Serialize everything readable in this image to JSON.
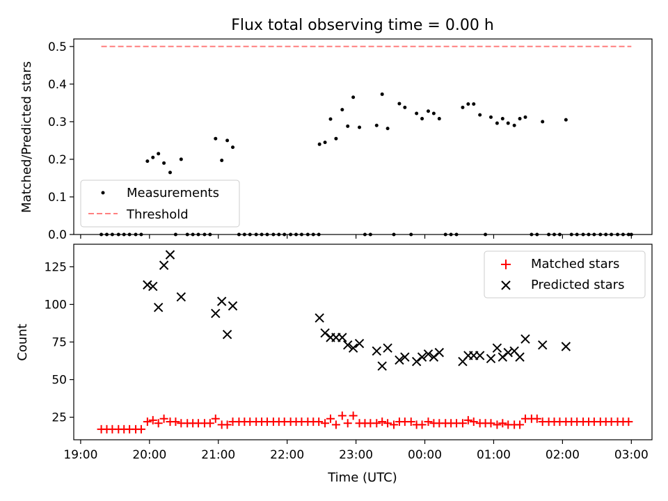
{
  "figure": {
    "title": "Flux total observing time = 0.00 h",
    "xlabel": "Time (UTC)"
  },
  "chart_data": [
    {
      "type": "scatter",
      "title": "Flux total observing time = 0.00 h",
      "ylabel": "Matched/Predicted stars",
      "xlabel": "",
      "x_unit": "hours since 19:00 UTC",
      "xlim": [
        -0.1,
        8.3
      ],
      "ylim": [
        0,
        0.52
      ],
      "yticks": [
        0.0,
        0.1,
        0.2,
        0.3,
        0.4,
        0.5
      ],
      "ytick_labels": [
        "0.0",
        "0.1",
        "0.2",
        "0.3",
        "0.4",
        "0.5"
      ],
      "xticks": [
        0,
        1,
        2,
        3,
        4,
        5,
        6,
        7,
        8
      ],
      "legend_position": "lower-left",
      "series": [
        {
          "name": "Measurements",
          "color": "#000000",
          "marker": "dot",
          "points": [
            [
              0.3,
              0
            ],
            [
              0.38,
              0
            ],
            [
              0.46,
              0
            ],
            [
              0.55,
              0
            ],
            [
              0.63,
              0
            ],
            [
              0.71,
              0
            ],
            [
              0.8,
              0
            ],
            [
              0.88,
              0
            ],
            [
              0.97,
              0.195
            ],
            [
              1.05,
              0.205
            ],
            [
              1.13,
              0.215
            ],
            [
              1.21,
              0.19
            ],
            [
              1.3,
              0.165
            ],
            [
              1.38,
              0
            ],
            [
              1.46,
              0.2
            ],
            [
              1.55,
              0
            ],
            [
              1.63,
              0
            ],
            [
              1.71,
              0
            ],
            [
              1.8,
              0
            ],
            [
              1.88,
              0
            ],
            [
              1.96,
              0.255
            ],
            [
              2.05,
              0.197
            ],
            [
              2.13,
              0.25
            ],
            [
              2.21,
              0.232
            ],
            [
              2.3,
              0
            ],
            [
              2.38,
              0
            ],
            [
              2.46,
              0
            ],
            [
              2.55,
              0
            ],
            [
              2.63,
              0
            ],
            [
              2.71,
              0
            ],
            [
              2.8,
              0
            ],
            [
              2.88,
              0
            ],
            [
              2.96,
              0
            ],
            [
              3.05,
              0
            ],
            [
              3.13,
              0
            ],
            [
              3.21,
              0
            ],
            [
              3.3,
              0
            ],
            [
              3.38,
              0
            ],
            [
              3.46,
              0
            ],
            [
              3.47,
              0.24
            ],
            [
              3.55,
              0.245
            ],
            [
              3.63,
              0.307
            ],
            [
              3.71,
              0.255
            ],
            [
              3.8,
              0.332
            ],
            [
              3.88,
              0.288
            ],
            [
              3.96,
              0.365
            ],
            [
              4.05,
              0.285
            ],
            [
              4.13,
              0
            ],
            [
              4.21,
              0
            ],
            [
              4.3,
              0.29
            ],
            [
              4.38,
              0.373
            ],
            [
              4.46,
              0.282
            ],
            [
              4.55,
              0
            ],
            [
              4.63,
              0.348
            ],
            [
              4.71,
              0.338
            ],
            [
              4.8,
              0
            ],
            [
              4.88,
              0.322
            ],
            [
              4.96,
              0.308
            ],
            [
              5.05,
              0.328
            ],
            [
              5.13,
              0.322
            ],
            [
              5.21,
              0.308
            ],
            [
              5.3,
              0
            ],
            [
              5.38,
              0
            ],
            [
              5.46,
              0
            ],
            [
              5.55,
              0.338
            ],
            [
              5.63,
              0.347
            ],
            [
              5.71,
              0.347
            ],
            [
              5.8,
              0.318
            ],
            [
              5.88,
              0
            ],
            [
              5.96,
              0.312
            ],
            [
              6.05,
              0.296
            ],
            [
              6.13,
              0.308
            ],
            [
              6.21,
              0.296
            ],
            [
              6.3,
              0.29
            ],
            [
              6.38,
              0.308
            ],
            [
              6.46,
              0.312
            ],
            [
              6.55,
              0
            ],
            [
              6.63,
              0
            ],
            [
              6.71,
              0.3
            ],
            [
              6.8,
              0
            ],
            [
              6.88,
              0
            ],
            [
              6.96,
              0
            ],
            [
              7.05,
              0.305
            ],
            [
              7.13,
              0
            ],
            [
              7.21,
              0
            ],
            [
              7.3,
              0
            ],
            [
              7.38,
              0
            ],
            [
              7.46,
              0
            ],
            [
              7.55,
              0
            ],
            [
              7.63,
              0
            ],
            [
              7.71,
              0
            ],
            [
              7.8,
              0
            ],
            [
              7.88,
              0
            ],
            [
              7.96,
              0
            ],
            [
              8.0,
              0
            ]
          ]
        },
        {
          "name": "Threshold",
          "color": "#ff7f7f",
          "style": "dashed",
          "points": [
            [
              0.3,
              0.5
            ],
            [
              8.0,
              0.5
            ]
          ]
        }
      ]
    },
    {
      "type": "scatter",
      "xlabel": "Time (UTC)",
      "ylabel": "Count",
      "x_unit": "hours since 19:00 UTC",
      "xlim": [
        -0.1,
        8.3
      ],
      "ylim": [
        10,
        140
      ],
      "yticks": [
        25,
        50,
        75,
        100,
        125
      ],
      "ytick_labels": [
        "25",
        "50",
        "75",
        "100",
        "125"
      ],
      "xticks": [
        0,
        1,
        2,
        3,
        4,
        5,
        6,
        7,
        8
      ],
      "xtick_labels": [
        "19:00",
        "20:00",
        "21:00",
        "22:00",
        "23:00",
        "00:00",
        "01:00",
        "02:00",
        "03:00"
      ],
      "legend_position": "top-right",
      "series": [
        {
          "name": "Matched stars",
          "color": "#ff0000",
          "marker": "plus",
          "points": [
            [
              0.3,
              17
            ],
            [
              0.38,
              17
            ],
            [
              0.46,
              17
            ],
            [
              0.55,
              17
            ],
            [
              0.63,
              17
            ],
            [
              0.71,
              17
            ],
            [
              0.8,
              17
            ],
            [
              0.88,
              17
            ],
            [
              0.97,
              22
            ],
            [
              1.05,
              23
            ],
            [
              1.13,
              21
            ],
            [
              1.21,
              24
            ],
            [
              1.3,
              22
            ],
            [
              1.38,
              22
            ],
            [
              1.46,
              21
            ],
            [
              1.55,
              21
            ],
            [
              1.63,
              21
            ],
            [
              1.71,
              21
            ],
            [
              1.8,
              21
            ],
            [
              1.88,
              21
            ],
            [
              1.96,
              24
            ],
            [
              2.05,
              20
            ],
            [
              2.13,
              20
            ],
            [
              2.21,
              22
            ],
            [
              2.3,
              22
            ],
            [
              2.38,
              22
            ],
            [
              2.46,
              22
            ],
            [
              2.55,
              22
            ],
            [
              2.63,
              22
            ],
            [
              2.71,
              22
            ],
            [
              2.8,
              22
            ],
            [
              2.88,
              22
            ],
            [
              2.96,
              22
            ],
            [
              3.05,
              22
            ],
            [
              3.13,
              22
            ],
            [
              3.21,
              22
            ],
            [
              3.3,
              22
            ],
            [
              3.38,
              22
            ],
            [
              3.46,
              22
            ],
            [
              3.55,
              21
            ],
            [
              3.63,
              24
            ],
            [
              3.71,
              20
            ],
            [
              3.8,
              26
            ],
            [
              3.88,
              21
            ],
            [
              3.96,
              26
            ],
            [
              4.05,
              21
            ],
            [
              4.13,
              21
            ],
            [
              4.21,
              21
            ],
            [
              4.3,
              21
            ],
            [
              4.38,
              22
            ],
            [
              4.46,
              21
            ],
            [
              4.55,
              20
            ],
            [
              4.63,
              22
            ],
            [
              4.71,
              22
            ],
            [
              4.8,
              22
            ],
            [
              4.88,
              20
            ],
            [
              4.96,
              20
            ],
            [
              5.05,
              22
            ],
            [
              5.13,
              21
            ],
            [
              5.21,
              21
            ],
            [
              5.3,
              21
            ],
            [
              5.38,
              21
            ],
            [
              5.46,
              21
            ],
            [
              5.55,
              21
            ],
            [
              5.63,
              23
            ],
            [
              5.71,
              22
            ],
            [
              5.8,
              21
            ],
            [
              5.88,
              21
            ],
            [
              5.96,
              21
            ],
            [
              6.05,
              20
            ],
            [
              6.13,
              21
            ],
            [
              6.21,
              20
            ],
            [
              6.3,
              20
            ],
            [
              6.38,
              20
            ],
            [
              6.46,
              24
            ],
            [
              6.55,
              24
            ],
            [
              6.63,
              24
            ],
            [
              6.71,
              22
            ],
            [
              6.8,
              22
            ],
            [
              6.88,
              22
            ],
            [
              6.96,
              22
            ],
            [
              7.05,
              22
            ],
            [
              7.13,
              22
            ],
            [
              7.21,
              22
            ],
            [
              7.3,
              22
            ],
            [
              7.38,
              22
            ],
            [
              7.46,
              22
            ],
            [
              7.55,
              22
            ],
            [
              7.63,
              22
            ],
            [
              7.71,
              22
            ],
            [
              7.8,
              22
            ],
            [
              7.88,
              22
            ],
            [
              7.96,
              22
            ]
          ]
        },
        {
          "name": "Predicted stars",
          "color": "#000000",
          "marker": "x",
          "points": [
            [
              0.97,
              113
            ],
            [
              1.05,
              112
            ],
            [
              1.13,
              98
            ],
            [
              1.21,
              126
            ],
            [
              1.3,
              133
            ],
            [
              1.46,
              105
            ],
            [
              1.96,
              94
            ],
            [
              2.05,
              102
            ],
            [
              2.13,
              80
            ],
            [
              2.21,
              99
            ],
            [
              3.47,
              91
            ],
            [
              3.55,
              81
            ],
            [
              3.63,
              78
            ],
            [
              3.71,
              78
            ],
            [
              3.8,
              78
            ],
            [
              3.88,
              73
            ],
            [
              3.96,
              71
            ],
            [
              4.05,
              74
            ],
            [
              4.3,
              69
            ],
            [
              4.38,
              59
            ],
            [
              4.46,
              71
            ],
            [
              4.63,
              63
            ],
            [
              4.71,
              65
            ],
            [
              4.88,
              62
            ],
            [
              4.96,
              65
            ],
            [
              5.05,
              67
            ],
            [
              5.13,
              65
            ],
            [
              5.21,
              68
            ],
            [
              5.55,
              62
            ],
            [
              5.63,
              66
            ],
            [
              5.71,
              66
            ],
            [
              5.8,
              66
            ],
            [
              5.96,
              64
            ],
            [
              6.05,
              71
            ],
            [
              6.13,
              65
            ],
            [
              6.21,
              68
            ],
            [
              6.3,
              69
            ],
            [
              6.38,
              65
            ],
            [
              6.46,
              77
            ],
            [
              6.71,
              73
            ],
            [
              7.05,
              72
            ]
          ]
        }
      ]
    }
  ]
}
